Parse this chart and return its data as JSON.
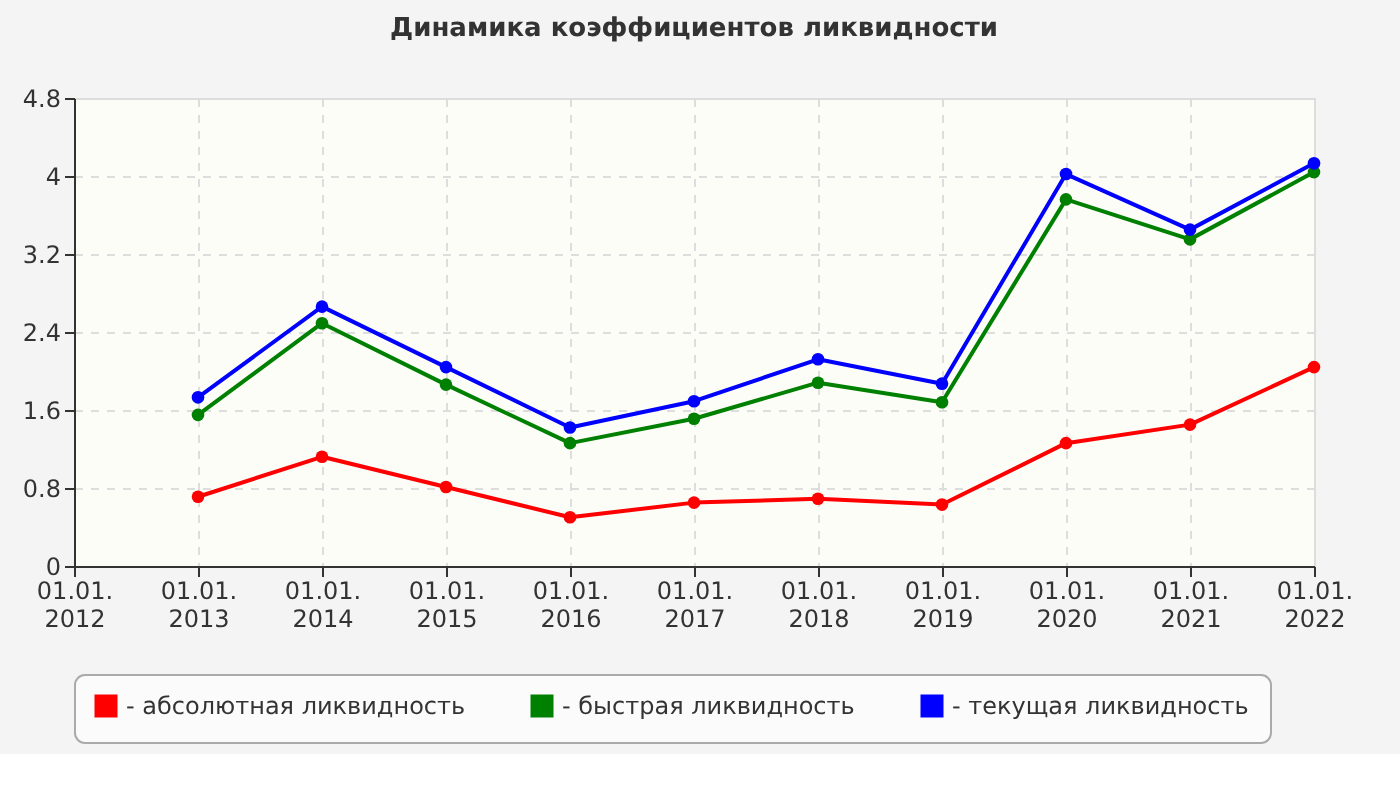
{
  "chart_data": {
    "type": "line",
    "title": "Динамика коэффициентов ликвидности",
    "categories": [
      "01.01. 2012",
      "01.01. 2013",
      "01.01. 2014",
      "01.01. 2015",
      "01.01. 2016",
      "01.01. 2017",
      "01.01. 2018",
      "01.01. 2019",
      "01.01. 2020",
      "01.01. 2021",
      "01.01. 2022"
    ],
    "series": [
      {
        "name": "- абсолютная ликвидность",
        "color": "#ff0000",
        "values": [
          null,
          0.71,
          1.12,
          0.81,
          0.5,
          0.65,
          0.69,
          0.63,
          1.26,
          1.45,
          2.04
        ]
      },
      {
        "name": "- быстрая ликвидность",
        "color": "#008000",
        "values": [
          null,
          1.55,
          2.49,
          1.86,
          1.26,
          1.51,
          1.88,
          1.68,
          3.76,
          3.35,
          4.04
        ]
      },
      {
        "name": "- текущая ликвидность",
        "color": "#0000ff",
        "values": [
          null,
          1.73,
          2.66,
          2.04,
          1.42,
          1.69,
          2.12,
          1.87,
          4.02,
          3.45,
          4.13
        ]
      }
    ],
    "ylim": [
      0,
      4.8
    ],
    "yticks": [
      0,
      0.8,
      1.6,
      2.4,
      3.2,
      4,
      4.8
    ],
    "grid": true,
    "legend": "bottom",
    "marker": "circle",
    "line_style": "solid"
  }
}
